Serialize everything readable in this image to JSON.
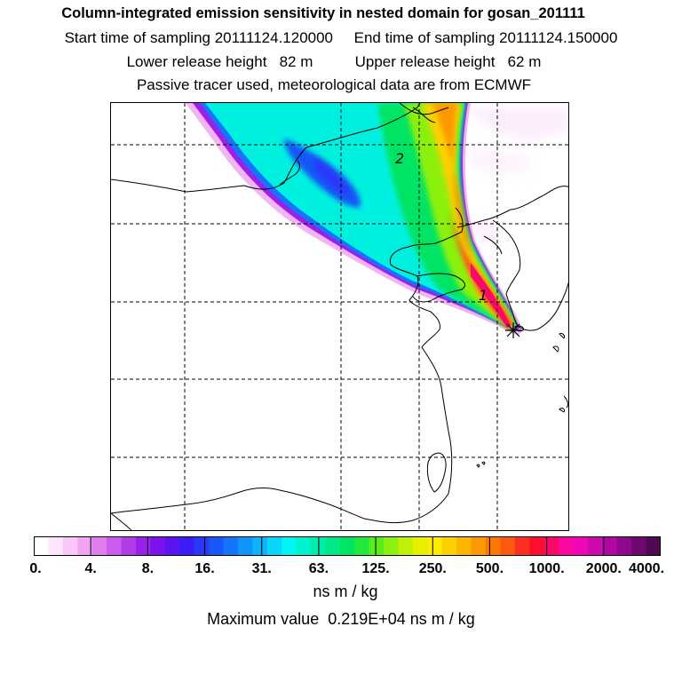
{
  "header": {
    "title": "Column-integrated emission sensitivity in nested domain for gosan_201111",
    "sampling_line": "Start time of sampling 20111124.120000     End time of sampling 20111124.150000",
    "release_line": "Lower release height   82 m          Upper release height   62 m",
    "tracer_line": "Passive tracer used, meteorological data are from ECMWF"
  },
  "map": {
    "point_labels": [
      {
        "text": "2"
      },
      {
        "text": "1"
      }
    ],
    "receptor_marker": "asterisk-marker"
  },
  "colorbar": {
    "tick_labels": [
      "0.",
      "4.",
      "8.",
      "16.",
      "31.",
      "63.",
      "125.",
      "250.",
      "500.",
      "1000.",
      "2000.",
      "4000."
    ],
    "colors": [
      "#ffffff",
      "#fde6fd",
      "#f9c8f9",
      "#f1a4f4",
      "#e07ef0",
      "#c95cee",
      "#b13de9",
      "#9a20ea",
      "#7c12ee",
      "#5d14f2",
      "#3b1cf4",
      "#2a38f8",
      "#1856f8",
      "#1474fa",
      "#1094fa",
      "#0cb4fc",
      "#08d4fc",
      "#00f4f4",
      "#00f0d0",
      "#00ecac",
      "#00e888",
      "#00e464",
      "#20e83c",
      "#58ec1c",
      "#8cf010",
      "#c0f008",
      "#e8f000",
      "#fcec00",
      "#fcd000",
      "#fcb400",
      "#fc9800",
      "#fc7800",
      "#fc5810",
      "#fc3020",
      "#fc1030",
      "#fc0868",
      "#fc08a0",
      "#f008b8",
      "#d008b0",
      "#b008a0",
      "#900890",
      "#700870",
      "#500850"
    ],
    "unit": "ns m / kg"
  },
  "footer": {
    "max_value_text": "Maximum value  0.219E+04 ns m / kg"
  }
}
